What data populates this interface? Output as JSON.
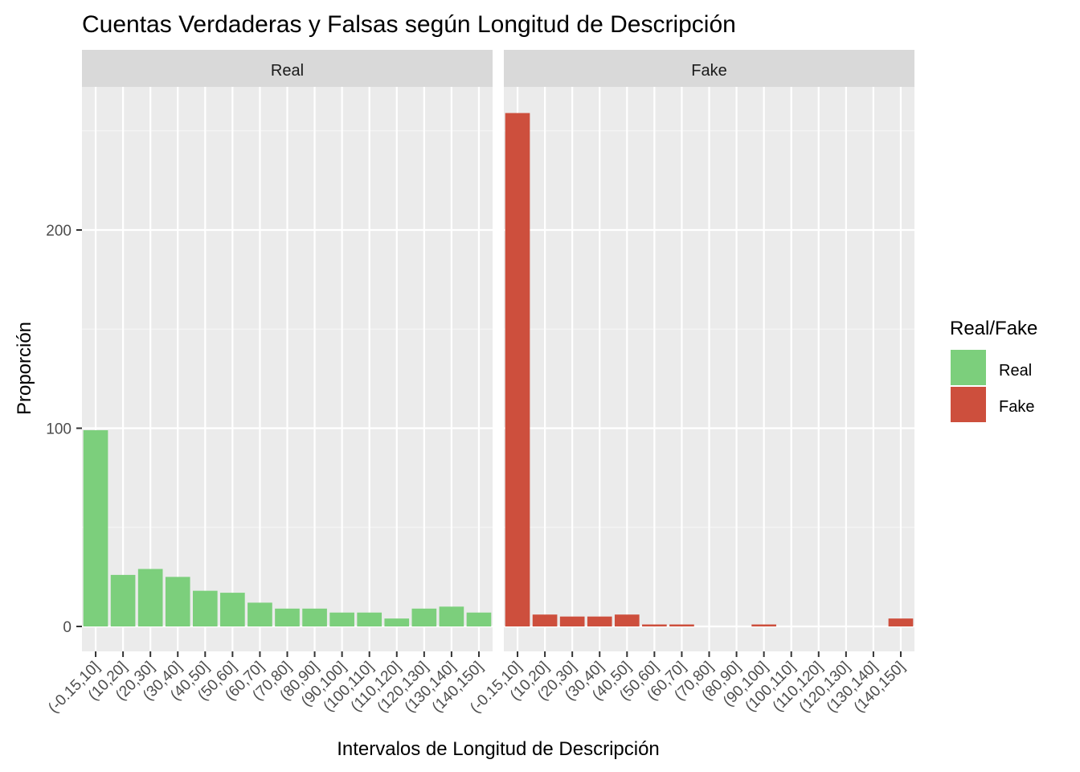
{
  "chart_data": {
    "type": "bar",
    "title": "Cuentas Verdaderas y Falsas según Longitud de Descripción",
    "xlabel": "Intervalos de Longitud de Descripción",
    "ylabel": "Proporción",
    "ylim": [
      0,
      270
    ],
    "y_ticks": [
      0,
      100,
      200
    ],
    "categories": [
      "(-0.15,10]",
      "(10,20]",
      "(20,30]",
      "(30,40]",
      "(40,50]",
      "(50,60]",
      "(60,70]",
      "(70,80]",
      "(80,90]",
      "(90,100]",
      "(100,110]",
      "(110,120]",
      "(120,130]",
      "(130,140]",
      "(140,150]"
    ],
    "panels": [
      {
        "strip": "Real",
        "series_name": "Real",
        "color": "#7CCF7C",
        "values": [
          99,
          26,
          29,
          25,
          18,
          17,
          12,
          9,
          9,
          7,
          7,
          4,
          9,
          10,
          7
        ]
      },
      {
        "strip": "Fake",
        "series_name": "Fake",
        "color": "#CD4F3D",
        "values": [
          259,
          6,
          5,
          5,
          6,
          1,
          1,
          0,
          0,
          1,
          0,
          0,
          0,
          0,
          4
        ]
      }
    ],
    "legend": {
      "title": "Real/Fake",
      "placement": "right",
      "entries": [
        {
          "label": "Real",
          "color": "#7CCF7C"
        },
        {
          "label": "Fake",
          "color": "#CD4F3D"
        }
      ]
    },
    "grid": true
  }
}
